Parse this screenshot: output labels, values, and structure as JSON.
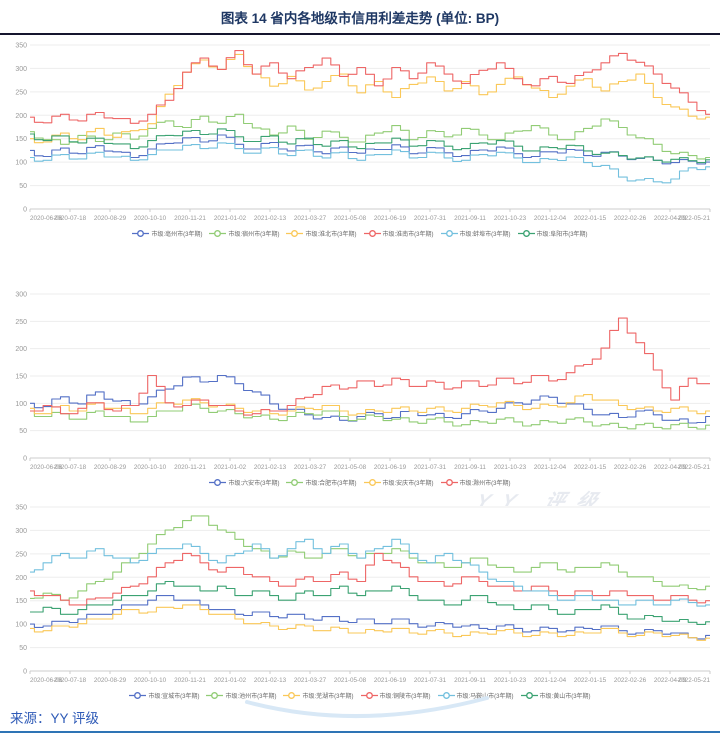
{
  "title": "图表 14 省内各地级市信用利差走势 (单位: BP)",
  "source": "来源：YY 评级",
  "watermark": "YY 评级",
  "palette": {
    "blue": "#5470c6",
    "green": "#91cc75",
    "yellow": "#fac858",
    "red": "#ee6666",
    "cyan": "#73c0de",
    "teal": "#3ba272"
  },
  "chart_data": [
    {
      "type": "line",
      "title": "",
      "ylabel": "",
      "xlabel": "",
      "ylim": [
        0,
        350
      ],
      "ytick_step": 50,
      "grid": true,
      "legend_position": "bottom",
      "x_labels": [
        "2020-06-06",
        "2020-07-18",
        "2020-08-29",
        "2020-10-10",
        "2020-11-21",
        "2021-01-02",
        "2021-02-13",
        "2021-03-27",
        "2021-05-08",
        "2021-06-19",
        "2021-07-31",
        "2021-09-11",
        "2021-10-23",
        "2021-12-04",
        "2022-01-15",
        "2022-02-26",
        "2022-04-09",
        "2022-05-21"
      ],
      "series": [
        {
          "name": "市级:亳州市(3年期)",
          "color": "#5470c6",
          "values": [
            125,
            112,
            130,
            118,
            135,
            122,
            110,
            128,
            140,
            152,
            143,
            158,
            138,
            128,
            142,
            124,
            136,
            118,
            132,
            119,
            127,
            137,
            118,
            131,
            120,
            114,
            126,
            132,
            118,
            112,
            122,
            127,
            114,
            121,
            113,
            108,
            104,
            99,
            102,
            100
          ]
        },
        {
          "name": "市级:宿州市(3年期)",
          "color": "#91cc75",
          "values": [
            165,
            148,
            138,
            157,
            144,
            162,
            149,
            172,
            188,
            174,
            198,
            183,
            202,
            173,
            158,
            177,
            149,
            166,
            153,
            143,
            162,
            178,
            148,
            167,
            154,
            172,
            158,
            148,
            166,
            178,
            158,
            148,
            172,
            192,
            174,
            152,
            138,
            118,
            114,
            110
          ]
        },
        {
          "name": "市级:淮北市(3年期)",
          "color": "#fac858",
          "values": [
            150,
            143,
            162,
            148,
            172,
            153,
            167,
            182,
            245,
            292,
            318,
            298,
            330,
            288,
            262,
            283,
            254,
            272,
            288,
            248,
            272,
            238,
            266,
            282,
            252,
            272,
            244,
            266,
            282,
            258,
            238,
            262,
            278,
            252,
            272,
            288,
            238,
            218,
            198,
            196
          ]
        },
        {
          "name": "市级:淮南市(3年期)",
          "color": "#ee6666",
          "values": [
            196,
            184,
            202,
            188,
            206,
            193,
            183,
            202,
            232,
            292,
            322,
            298,
            338,
            288,
            312,
            278,
            302,
            322,
            283,
            302,
            263,
            302,
            278,
            312,
            288,
            268,
            296,
            312,
            278,
            263,
            283,
            268,
            292,
            312,
            332,
            313,
            288,
            258,
            228,
            202
          ]
        },
        {
          "name": "市级:蚌埠市(3年期)",
          "color": "#73c0de",
          "values": [
            110,
            104,
            116,
            107,
            121,
            111,
            104,
            116,
            126,
            136,
            129,
            141,
            129,
            119,
            131,
            114,
            126,
            109,
            121,
            104,
            116,
            126,
            109,
            121,
            109,
            104,
            116,
            121,
            109,
            99,
            106,
            111,
            99,
            93,
            68,
            62,
            58,
            64,
            88,
            90
          ]
        },
        {
          "name": "市级:阜阳市(3年期)",
          "color": "#3ba272",
          "values": [
            160,
            146,
            156,
            141,
            151,
            139,
            129,
            146,
            157,
            166,
            159,
            171,
            154,
            144,
            156,
            139,
            151,
            134,
            146,
            129,
            141,
            151,
            134,
            146,
            134,
            129,
            141,
            146,
            134,
            124,
            131,
            136,
            124,
            119,
            114,
            109,
            104,
            106,
            103,
            105
          ]
        }
      ]
    },
    {
      "type": "line",
      "title": "",
      "ylabel": "",
      "xlabel": "",
      "ylim": [
        0,
        300
      ],
      "ytick_step": 50,
      "grid": true,
      "legend_position": "bottom",
      "x_labels": [
        "2020-06-06",
        "2020-07-18",
        "2020-08-29",
        "2020-10-10",
        "2020-11-21",
        "2021-01-02",
        "2021-02-13",
        "2021-03-27",
        "2021-05-08",
        "2021-06-19",
        "2021-07-31",
        "2021-09-11",
        "2021-10-23",
        "2021-12-04",
        "2022-01-15",
        "2022-02-26",
        "2022-04-09",
        "2022-05-21"
      ],
      "series": [
        {
          "name": "市级:六安市(3年期)",
          "color": "#5470c6",
          "values": [
            100,
            94,
            112,
            99,
            121,
            104,
            96,
            112,
            126,
            148,
            139,
            151,
            136,
            121,
            99,
            89,
            79,
            74,
            69,
            76,
            81,
            74,
            86,
            79,
            74,
            81,
            86,
            91,
            101,
            106,
            111,
            99,
            89,
            79,
            74,
            86,
            79,
            69,
            64,
            76
          ]
        },
        {
          "name": "市级:合肥市(3年期)",
          "color": "#91cc75",
          "values": [
            86,
            76,
            81,
            71,
            86,
            76,
            66,
            76,
            86,
            96,
            91,
            86,
            81,
            76,
            71,
            76,
            81,
            86,
            76,
            71,
            76,
            71,
            66,
            71,
            66,
            61,
            66,
            71,
            66,
            61,
            66,
            71,
            66,
            61,
            56,
            61,
            56,
            61,
            56,
            60
          ]
        },
        {
          "name": "市级:安庆市(3年期)",
          "color": "#fac858",
          "values": [
            91,
            81,
            96,
            86,
            101,
            91,
            81,
            91,
            101,
            106,
            101,
            96,
            91,
            86,
            81,
            86,
            91,
            96,
            86,
            81,
            86,
            91,
            86,
            91,
            86,
            91,
            96,
            101,
            96,
            91,
            96,
            101,
            116,
            106,
            96,
            91,
            86,
            91,
            86,
            86
          ]
        },
        {
          "name": "市级:滁州市(3年期)",
          "color": "#ee6666",
          "values": [
            86,
            96,
            81,
            91,
            101,
            86,
            96,
            151,
            101,
            96,
            106,
            96,
            86,
            81,
            86,
            96,
            111,
            131,
            126,
            141,
            131,
            146,
            131,
            141,
            126,
            141,
            131,
            146,
            136,
            151,
            141,
            156,
            171,
            201,
            256,
            211,
            161,
            106,
            146,
            136
          ]
        }
      ]
    },
    {
      "type": "line",
      "title": "",
      "ylabel": "",
      "xlabel": "",
      "ylim": [
        0,
        350
      ],
      "ytick_step": 50,
      "grid": true,
      "legend_position": "bottom",
      "x_labels": [
        "2020-06-06",
        "2020-07-18",
        "2020-08-29",
        "2020-10-10",
        "2020-11-21",
        "2021-01-02",
        "2021-02-13",
        "2021-03-27",
        "2021-05-08",
        "2021-06-19",
        "2021-07-31",
        "2021-09-11",
        "2021-10-23",
        "2021-12-04",
        "2022-01-15",
        "2022-02-26",
        "2022-04-09",
        "2022-05-21"
      ],
      "series": [
        {
          "name": "市级:宣城市(3年期)",
          "color": "#5470c6",
          "values": [
            100,
            96,
            106,
            111,
            121,
            131,
            141,
            151,
            161,
            151,
            141,
            131,
            121,
            126,
            116,
            121,
            111,
            116,
            106,
            111,
            101,
            111,
            101,
            96,
            101,
            96,
            91,
            96,
            91,
            86,
            91,
            86,
            91,
            96,
            86,
            81,
            86,
            81,
            71,
            76
          ]
        },
        {
          "name": "市级:池州市(3年期)",
          "color": "#91cc75",
          "values": [
            155,
            166,
            151,
            171,
            191,
            211,
            241,
            271,
            301,
            321,
            331,
            301,
            281,
            261,
            241,
            256,
            241,
            251,
            261,
            241,
            251,
            261,
            241,
            231,
            221,
            231,
            241,
            221,
            211,
            221,
            231,
            211,
            221,
            231,
            211,
            201,
            191,
            181,
            176,
            181
          ]
        },
        {
          "name": "市级:芜湖市(3年期)",
          "color": "#fac858",
          "values": [
            91,
            86,
            96,
            101,
            111,
            121,
            131,
            126,
            136,
            141,
            131,
            121,
            111,
            101,
            96,
            91,
            96,
            86,
            91,
            81,
            86,
            91,
            81,
            86,
            81,
            76,
            81,
            86,
            81,
            76,
            81,
            76,
            81,
            91,
            81,
            76,
            81,
            76,
            71,
            70
          ]
        },
        {
          "name": "市级:铜陵市(3年期)",
          "color": "#ee6666",
          "values": [
            171,
            161,
            151,
            141,
            156,
            166,
            181,
            201,
            231,
            251,
            231,
            211,
            221,
            201,
            191,
            181,
            201,
            191,
            211,
            191,
            251,
            231,
            201,
            191,
            181,
            201,
            191,
            181,
            171,
            181,
            171,
            161,
            171,
            161,
            171,
            161,
            151,
            161,
            151,
            150
          ]
        },
        {
          "name": "市级:马鞍山市(3年期)",
          "color": "#73c0de",
          "values": [
            211,
            231,
            251,
            241,
            261,
            241,
            231,
            251,
            261,
            271,
            251,
            231,
            251,
            271,
            241,
            261,
            281,
            251,
            271,
            241,
            261,
            281,
            251,
            231,
            251,
            231,
            211,
            191,
            181,
            171,
            161,
            151,
            161,
            151,
            141,
            151,
            141,
            151,
            146,
            141
          ]
        },
        {
          "name": "市级:黄山市(3年期)",
          "color": "#3ba272",
          "values": [
            126,
            136,
            121,
            131,
            141,
            151,
            161,
            171,
            191,
            181,
            171,
            181,
            161,
            171,
            161,
            151,
            171,
            161,
            181,
            161,
            171,
            181,
            161,
            151,
            141,
            151,
            161,
            141,
            131,
            141,
            131,
            121,
            131,
            141,
            121,
            111,
            116,
            106,
            104,
            105
          ]
        }
      ]
    }
  ]
}
